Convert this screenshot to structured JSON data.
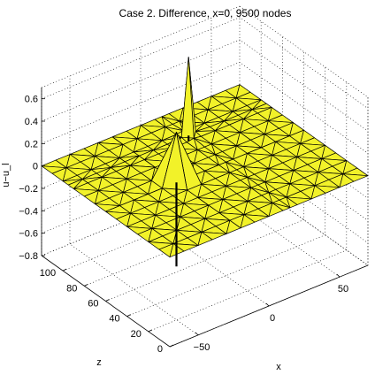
{
  "chart_data": {
    "type": "surface",
    "title": "Case 2. Difference, x=0, 9500 nodes",
    "xlabel": "x",
    "ylabel": "z",
    "zlabel": "u−u_l",
    "xlim": [
      -70,
      70
    ],
    "ylim": [
      0,
      120
    ],
    "zlim": [
      -0.8,
      0.7
    ],
    "xticks": [
      "−50",
      "0",
      "50"
    ],
    "yticks": [
      "0",
      "20",
      "40",
      "60",
      "80",
      "100"
    ],
    "zticks": [
      "0.6",
      "0.4",
      "0.2",
      "0",
      "−0.2",
      "−0.4",
      "−0.6",
      "−0.8"
    ],
    "grid": true,
    "surface_color": "#f2f229",
    "edge_color": "#000000",
    "peaks": [
      {
        "x": -20,
        "z": 60,
        "value": 0.45,
        "trough": -0.75
      },
      {
        "x": 15,
        "z": 95,
        "value": 0.7,
        "trough": -0.05
      }
    ]
  }
}
